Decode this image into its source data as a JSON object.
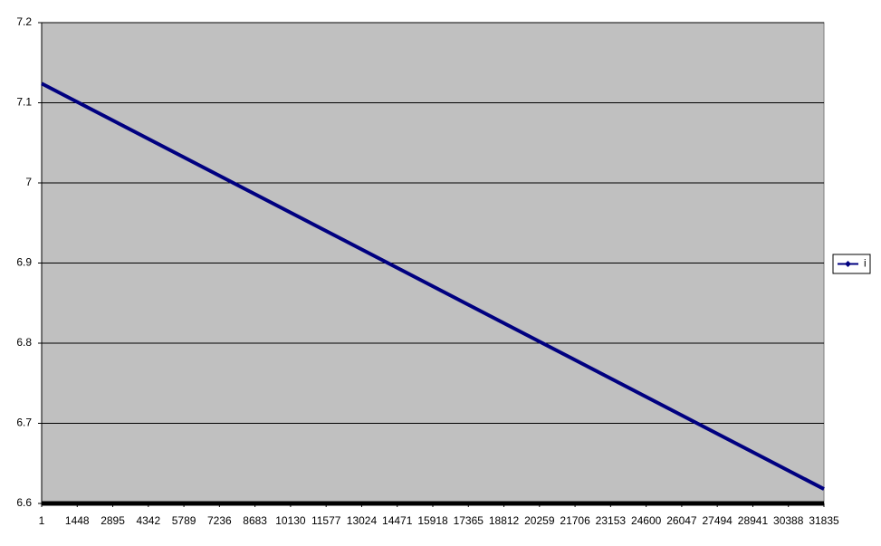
{
  "chart_data": {
    "type": "line",
    "x": [
      1,
      31835
    ],
    "series": [
      {
        "name": "i",
        "color": "#000080",
        "values": [
          7.124,
          6.618
        ]
      }
    ],
    "xlim": [
      1,
      31835
    ],
    "xticks": [
      1,
      1448,
      2895,
      4342,
      5789,
      7236,
      8683,
      10130,
      11577,
      13024,
      14471,
      15918,
      17365,
      18812,
      20259,
      21706,
      23153,
      24600,
      26047,
      27494,
      28941,
      30388,
      31835
    ],
    "ylim": [
      6.6,
      7.2
    ],
    "yticks": [
      6.6,
      6.7,
      6.8,
      6.9,
      7,
      7.1,
      7.2
    ],
    "grid": true,
    "legend": "right",
    "plot_background": "#c0c0c0"
  }
}
